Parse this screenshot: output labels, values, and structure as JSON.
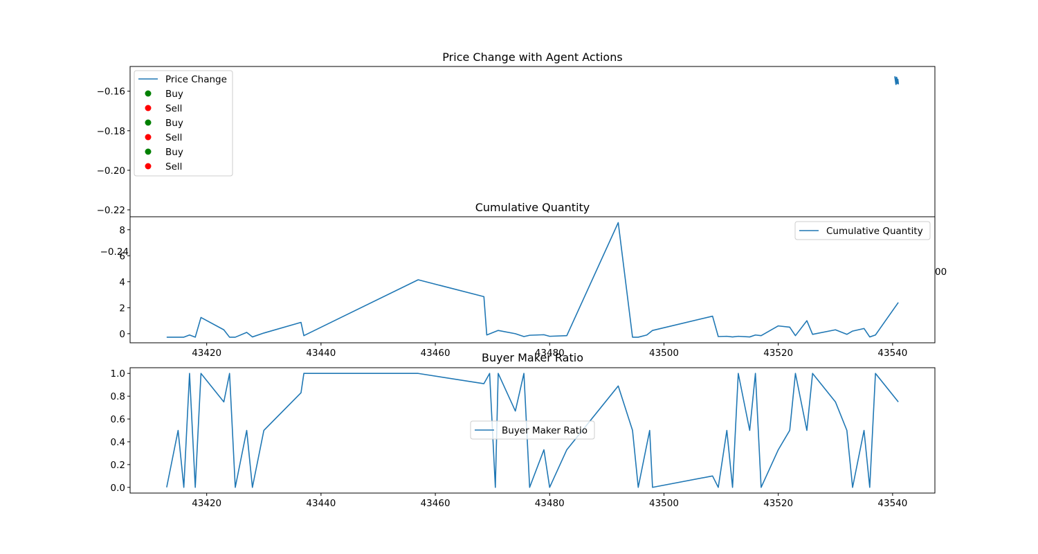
{
  "colors": {
    "line": "#1f77b4",
    "buy": "#008000",
    "sell": "#ff0000",
    "axis": "#000000"
  },
  "chart_data": [
    {
      "type": "line",
      "title": "Price Change with Agent Actions",
      "xlim": [
        43406.6,
        43547.4
      ],
      "ylim": [
        -0.2235,
        -0.1475
      ],
      "yticks": [
        -0.16,
        -0.18,
        -0.2,
        -0.22
      ],
      "ytick_labels": [
        "−0.16",
        "−0.18",
        "−0.20",
        "−0.22"
      ],
      "xtick_labels": [],
      "legend": [
        "Price Change",
        "Buy",
        "Sell",
        "Buy",
        "Sell",
        "Buy",
        "Sell"
      ],
      "legend_location": "upper-left",
      "series": [
        {
          "name": "Price Change",
          "x": [
            43540.4,
            43540.5,
            43540.6,
            43540.7,
            43540.8,
            43540.9,
            43541.0
          ],
          "y": [
            -0.1525,
            -0.1545,
            -0.1565,
            -0.153,
            -0.156,
            -0.154,
            -0.1565
          ]
        }
      ],
      "overlap_text": {
        "y_label": "−0.24",
        "right_label": "00"
      }
    },
    {
      "type": "line",
      "title": "Cumulative Quantity",
      "xlim": [
        43406.6,
        43547.4
      ],
      "ylim": [
        -0.7,
        9.0
      ],
      "yticks": [
        0,
        2,
        4,
        6,
        8
      ],
      "ytick_labels": [
        "0",
        "2",
        "4",
        "6",
        "8"
      ],
      "xticks": [
        43420,
        43440,
        43460,
        43480,
        43500,
        43520,
        43540
      ],
      "xtick_labels": [
        "43420",
        "43440",
        "43460",
        "43480",
        "43500",
        "43520",
        "43540"
      ],
      "legend": [
        "Cumulative Quantity"
      ],
      "legend_location": "upper-right",
      "series": [
        {
          "name": "Cumulative Quantity",
          "x": [
            43413,
            43416,
            43417,
            43418,
            43419,
            43423,
            43424,
            43425,
            43427,
            43428,
            43430,
            43436.5,
            43437,
            43457,
            43468.5,
            43469,
            43471,
            43474,
            43475.5,
            43476.5,
            43479,
            43480,
            43483,
            43492,
            43494.5,
            43495.5,
            43497,
            43498,
            43508.5,
            43509.5,
            43511,
            43512,
            43513,
            43515,
            43516,
            43517,
            43520,
            43522,
            43523,
            43525,
            43526,
            43530,
            43532,
            43533,
            43535,
            43536,
            43537,
            43541
          ],
          "y": [
            -0.27,
            -0.27,
            -0.1,
            -0.27,
            1.25,
            0.3,
            -0.27,
            -0.27,
            0.1,
            -0.25,
            0.05,
            0.87,
            -0.15,
            4.15,
            2.85,
            -0.1,
            0.25,
            0.0,
            -0.22,
            -0.12,
            -0.08,
            -0.2,
            -0.15,
            8.55,
            -0.27,
            -0.27,
            -0.1,
            0.25,
            1.35,
            -0.22,
            -0.2,
            -0.25,
            -0.2,
            -0.25,
            -0.1,
            -0.15,
            0.6,
            0.5,
            -0.15,
            1.0,
            -0.05,
            0.3,
            -0.05,
            0.2,
            0.4,
            -0.25,
            -0.1,
            2.4
          ]
        }
      ]
    },
    {
      "type": "line",
      "title": "Buyer Maker Ratio",
      "xlim": [
        43406.6,
        43547.4
      ],
      "ylim": [
        -0.05,
        1.05
      ],
      "yticks": [
        0.0,
        0.2,
        0.4,
        0.6,
        0.8,
        1.0
      ],
      "ytick_labels": [
        "0.0",
        "0.2",
        "0.4",
        "0.6",
        "0.8",
        "1.0"
      ],
      "xticks": [
        43420,
        43440,
        43460,
        43480,
        43500,
        43520,
        43540
      ],
      "xtick_labels": [
        "43420",
        "43440",
        "43460",
        "43480",
        "43500",
        "43520",
        "43540"
      ],
      "legend": [
        "Buyer Maker Ratio"
      ],
      "legend_location": "center",
      "series": [
        {
          "name": "Buyer Maker Ratio",
          "x": [
            43413,
            43415,
            43416,
            43417,
            43418,
            43419,
            43423,
            43424,
            43425,
            43427,
            43428,
            43430,
            43436.5,
            43437,
            43457,
            43468.5,
            43469.5,
            43470.5,
            43471,
            43474,
            43475.5,
            43476.5,
            43479,
            43480,
            43483,
            43492,
            43494.5,
            43495.5,
            43497.5,
            43498,
            43508.5,
            43509.5,
            43511,
            43512,
            43513,
            43515,
            43516,
            43517,
            43520,
            43522,
            43523,
            43525,
            43526,
            43530,
            43532,
            43533,
            43535,
            43536,
            43537,
            43541
          ],
          "y": [
            0.0,
            0.5,
            0.0,
            1.0,
            0.0,
            1.0,
            0.75,
            1.0,
            0.0,
            0.5,
            0.0,
            0.5,
            0.83,
            1.0,
            1.0,
            0.91,
            1.0,
            0.0,
            1.0,
            0.67,
            1.0,
            0.0,
            0.33,
            0.0,
            0.33,
            0.89,
            0.5,
            0.0,
            0.5,
            0.0,
            0.1,
            0.0,
            0.5,
            0.0,
            1.0,
            0.5,
            1.0,
            0.0,
            0.33,
            0.5,
            1.0,
            0.5,
            1.0,
            0.75,
            0.5,
            0.0,
            0.5,
            0.0,
            1.0,
            0.75
          ]
        }
      ]
    }
  ]
}
